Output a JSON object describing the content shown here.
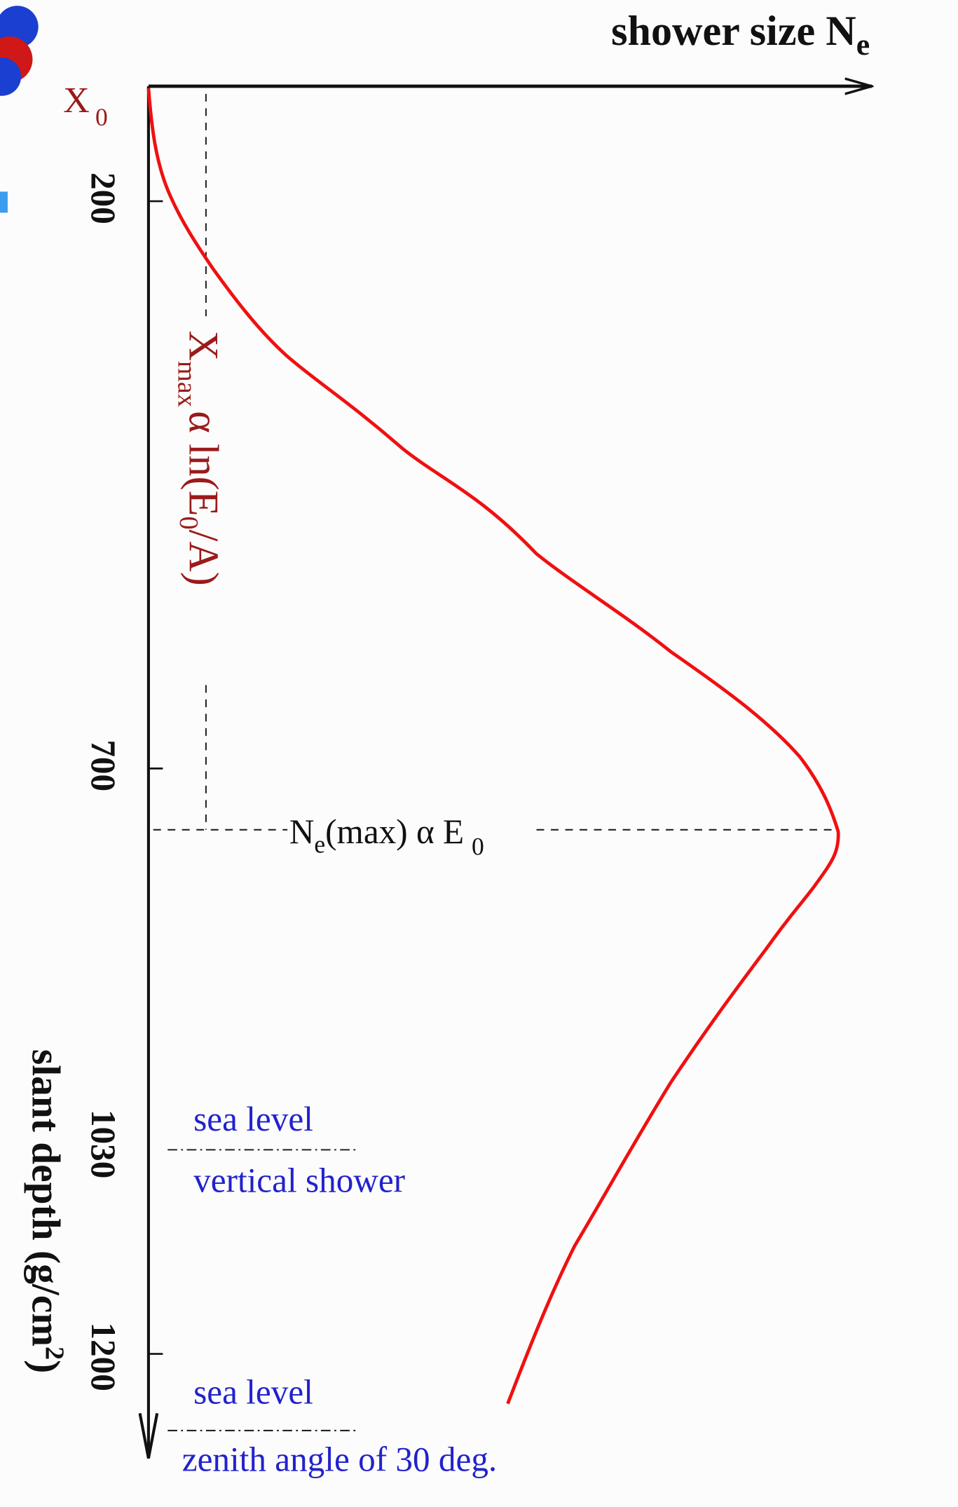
{
  "x_axis_label": {
    "text": "shower size N",
    "sub": "e"
  },
  "origin_label": {
    "text": "X",
    "sub": "0"
  },
  "depth_ticks": [
    "200",
    "700",
    "1030",
    "1200"
  ],
  "y_axis_label": {
    "text": "slant depth   (g/cm",
    "sup": "2",
    "end": ")"
  },
  "xmax_label": {
    "text": "X",
    "sub": "max",
    "rest": "α  ln(E",
    "sub2": "0",
    "end": "/A)"
  },
  "nmax_label": {
    "text": "N",
    "sub": "e",
    "mid": "(max)  α  E",
    "sub2": "0"
  },
  "vertical_note": {
    "line1": "sea level",
    "line2": "vertical shower"
  },
  "zenith_note": {
    "line1": "sea level",
    "line2": "zenith angle of 30 deg."
  }
}
